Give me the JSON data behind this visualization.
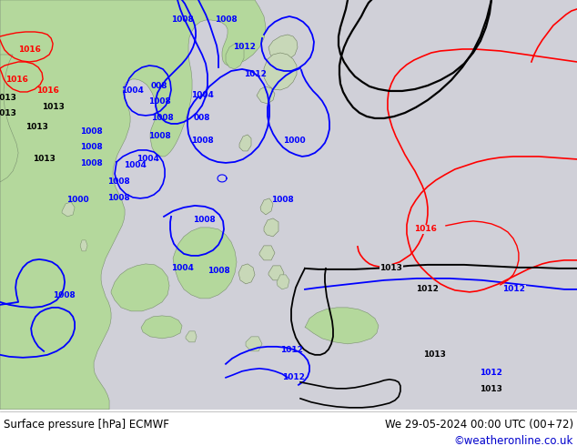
{
  "fig_width": 6.34,
  "fig_height": 4.9,
  "dpi": 100,
  "bottom_text_left": "Surface pressure [hPa] ECMWF",
  "bottom_text_right": "We 29-05-2024 00:00 UTC (00+72)",
  "bottom_text_url": "©weatheronline.co.uk",
  "bottom_text_color": "#000000",
  "bottom_url_color": "#0000cc",
  "contour_blue": "#0000ff",
  "contour_black": "#000000",
  "contour_red": "#ff0000",
  "land_green": "#b4d89c",
  "land_green2": "#c0dca8",
  "sea_color": "#d0d0d8",
  "sea_color2": "#c8c8d0"
}
